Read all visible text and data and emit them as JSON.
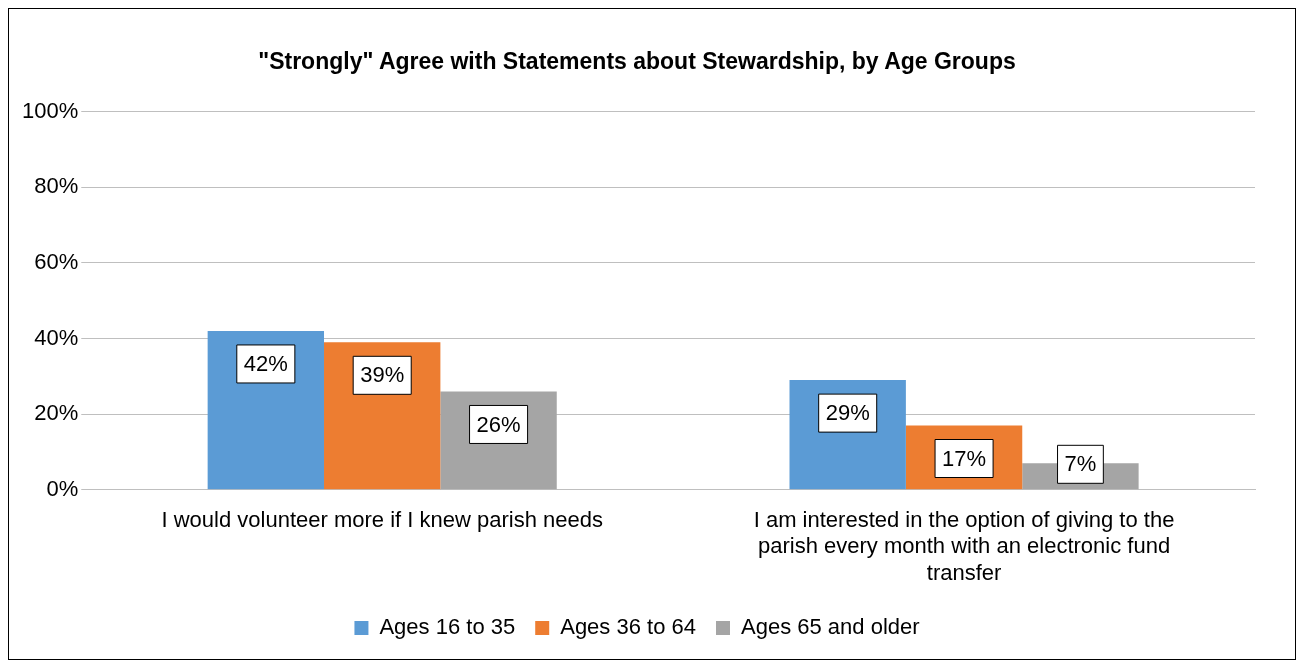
{
  "chart_data": {
    "type": "bar",
    "title": "\"Strongly\" Agree with Statements about Stewardship, by Age Groups",
    "categories": [
      "I would volunteer more if I knew parish needs",
      "I am interested in the option of giving to the parish every month with an electronic fund transfer"
    ],
    "series": [
      {
        "name": "Ages 16 to 35",
        "color": "#5b9bd5",
        "values": [
          42,
          29
        ],
        "value_labels": [
          "42%",
          "29%"
        ]
      },
      {
        "name": "Ages 36 to 64",
        "color": "#ed7d31",
        "values": [
          39,
          17
        ],
        "value_labels": [
          "39%",
          "17%"
        ]
      },
      {
        "name": "Ages 65 and older",
        "color": "#a5a5a5",
        "values": [
          26,
          7
        ],
        "value_labels": [
          "26%",
          "7%"
        ]
      }
    ],
    "ylim": [
      0,
      100
    ],
    "yticks": [
      {
        "value": 0,
        "label": "0%"
      },
      {
        "value": 20,
        "label": "20%"
      },
      {
        "value": 40,
        "label": "40%"
      },
      {
        "value": 60,
        "label": "60%"
      },
      {
        "value": 80,
        "label": "80%"
      },
      {
        "value": 100,
        "label": "100%"
      }
    ],
    "grid": "y",
    "legend": "bottom"
  }
}
